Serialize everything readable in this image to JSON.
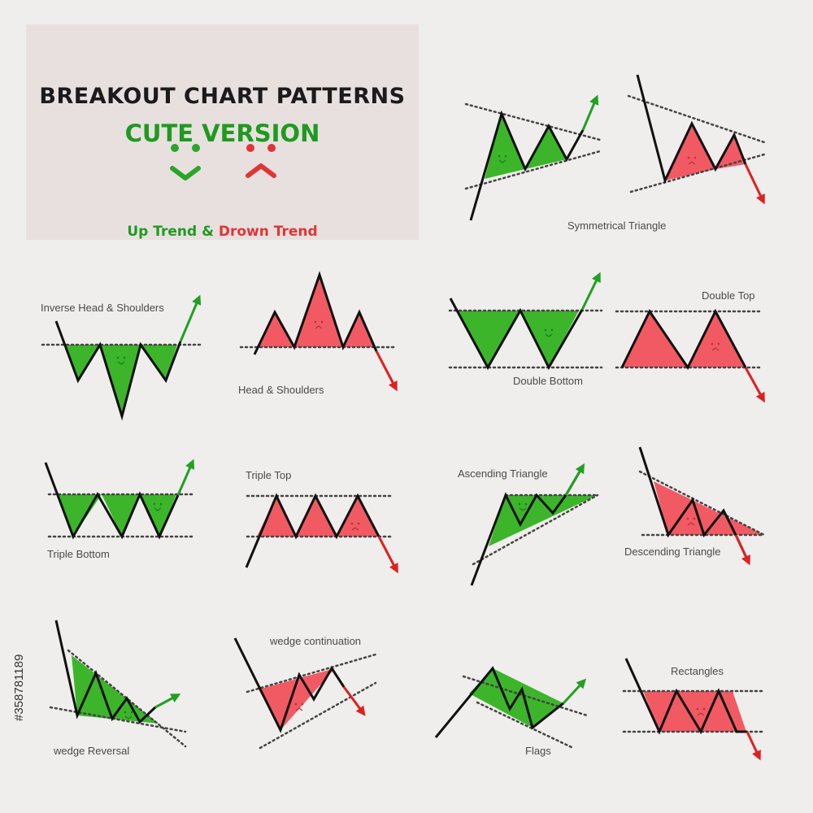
{
  "header": {
    "title": "BREAKOUT CHART PATTERNS",
    "subtitle": "CUTE VERSION",
    "legend_up": "Up Trend &",
    "legend_down": "Drown Trend"
  },
  "colors": {
    "up": "#3cb52a",
    "down": "#f25a63",
    "up_arrow": "#22a022",
    "down_arrow": "#e02020",
    "line": "#111111",
    "dotted": "#444444"
  },
  "patterns": [
    {
      "label": "Symmetrical Triangle",
      "trend": "up and down"
    },
    {
      "label": "Inverse Head & Shoulders",
      "trend": "up"
    },
    {
      "label": "Head & Shoulders",
      "trend": "down"
    },
    {
      "label": "Double Bottom",
      "trend": "up"
    },
    {
      "label": "Double Top",
      "trend": "down"
    },
    {
      "label": "Triple  Bottom",
      "trend": "up"
    },
    {
      "label": "Triple  Top",
      "trend": "down"
    },
    {
      "label": "Ascending  Triangle",
      "trend": "up"
    },
    {
      "label": "Descending  Triangle",
      "trend": "down"
    },
    {
      "label": "wedge  Reversal",
      "trend": "up"
    },
    {
      "label": "wedge continuation",
      "trend": "down"
    },
    {
      "label": "Flags",
      "trend": "up"
    },
    {
      "label": "Rectangles",
      "trend": "down"
    }
  ],
  "watermark": "#358781189"
}
